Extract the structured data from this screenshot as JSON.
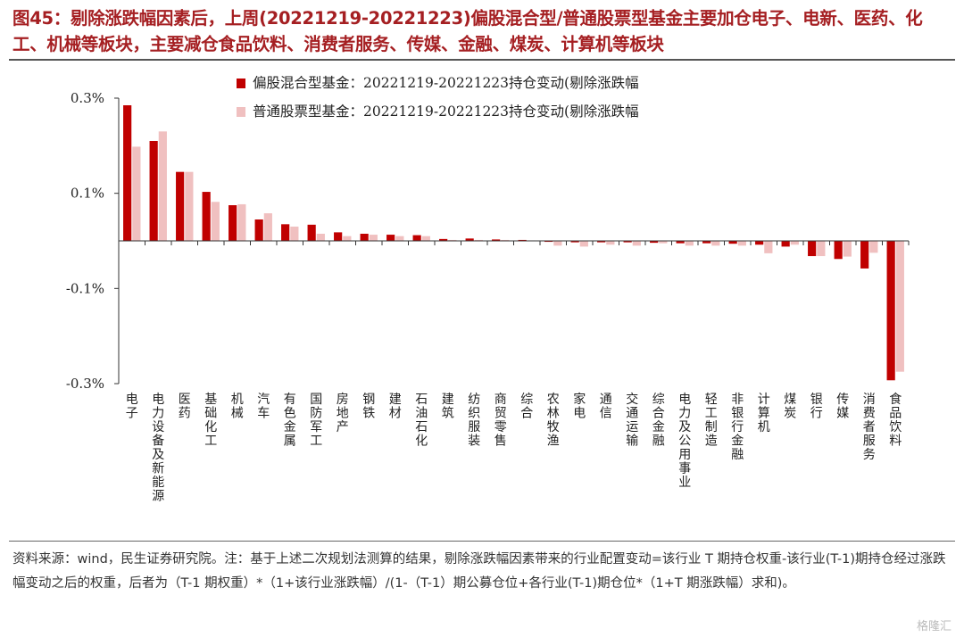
{
  "title": "图45：剔除涨跌幅因素后，上周(20221219-20221223)偏股混合型/普通股票型基金主要加仓电子、电新、医药、化工、机械等板块，主要减仓食品饮料、消费者服务、传媒、金融、煤炭、计算机等板块",
  "note": "资料来源：wind，民生证券研究院。注：基于上述二次规划法测算的结果，剔除涨跌幅因素带来的行业配置变动=该行业 T 期持仓权重-该行业(T-1)期持仓经过涨跌幅变动之后的权重，后者为（T-1 期权重）*（1+该行业涨跌幅）/(1-（T-1）期公募仓位+各行业(T-1)期仓位*（1+T 期涨跌幅）求和)。",
  "watermark": "格隆汇",
  "chart_data": {
    "type": "bar",
    "ylim": [
      -0.3,
      0.3
    ],
    "yticks": [
      0.3,
      0.1,
      -0.1,
      -0.3
    ],
    "ytick_labels": [
      "0.3%",
      "0.1%",
      "-0.1%",
      "-0.3%"
    ],
    "legend_position": "top-center",
    "categories": [
      "电子",
      "电力设备及新能源",
      "医药",
      "基础化工",
      "机械",
      "汽车",
      "有色金属",
      "国防军工",
      "房地产",
      "钢铁",
      "建材",
      "石油石化",
      "建筑",
      "纺织服装",
      "商贸零售",
      "综合",
      "农林牧渔",
      "家电",
      "通信",
      "交通运输",
      "综合金融",
      "电力及公用事业",
      "轻工制造",
      "非银行金融",
      "计算机",
      "煤炭",
      "银行",
      "传媒",
      "消费者服务",
      "食品饮料"
    ],
    "series": [
      {
        "name": "偏股混合型基金：20221219-20221223持仓变动(剔除涨跌幅",
        "color": "#c00000",
        "values": [
          0.285,
          0.21,
          0.145,
          0.103,
          0.075,
          0.045,
          0.035,
          0.034,
          0.018,
          0.015,
          0.013,
          0.012,
          0.004,
          0.005,
          0.003,
          0.002,
          -0.002,
          -0.003,
          -0.003,
          -0.003,
          -0.004,
          -0.005,
          -0.005,
          -0.006,
          -0.008,
          -0.012,
          -0.032,
          -0.038,
          -0.058,
          -0.293
        ]
      },
      {
        "name": "普通股票型基金：20221219-20221223持仓变动(剔除涨跌幅",
        "color": "#f0c0c0",
        "values": [
          0.198,
          0.23,
          0.145,
          0.082,
          0.077,
          0.058,
          0.03,
          0.015,
          0.01,
          0.013,
          0.01,
          0.01,
          0.002,
          0.002,
          0.002,
          0.001,
          -0.01,
          -0.012,
          -0.008,
          -0.01,
          -0.005,
          -0.01,
          -0.01,
          -0.01,
          -0.026,
          -0.008,
          -0.032,
          -0.033,
          -0.025,
          -0.275
        ]
      }
    ]
  }
}
